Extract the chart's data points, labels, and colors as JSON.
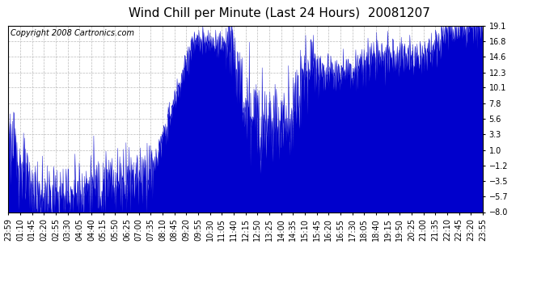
{
  "title": "Wind Chill per Minute (Last 24 Hours)  20081207",
  "copyright_text": "Copyright 2008 Cartronics.com",
  "line_color": "#0000CC",
  "background_color": "#ffffff",
  "grid_color": "#aaaaaa",
  "yticks": [
    19.1,
    16.8,
    14.6,
    12.3,
    10.1,
    7.8,
    5.6,
    3.3,
    1.0,
    -1.2,
    -3.5,
    -5.7,
    -8.0
  ],
  "ylim": [
    -8.0,
    19.1
  ],
  "xtick_labels": [
    "23:59",
    "01:10",
    "01:45",
    "02:20",
    "02:55",
    "03:30",
    "04:05",
    "04:40",
    "05:15",
    "05:50",
    "06:25",
    "07:00",
    "07:35",
    "08:10",
    "08:45",
    "09:20",
    "09:55",
    "10:30",
    "11:05",
    "11:40",
    "12:15",
    "12:50",
    "13:25",
    "14:00",
    "14:35",
    "15:10",
    "15:45",
    "16:20",
    "16:55",
    "17:30",
    "18:05",
    "18:40",
    "19:15",
    "19:50",
    "20:25",
    "21:00",
    "21:35",
    "22:10",
    "22:45",
    "23:20",
    "23:55"
  ],
  "title_fontsize": 11,
  "copyright_fontsize": 7,
  "tick_fontsize": 7,
  "figsize": [
    6.9,
    3.75
  ],
  "dpi": 100
}
